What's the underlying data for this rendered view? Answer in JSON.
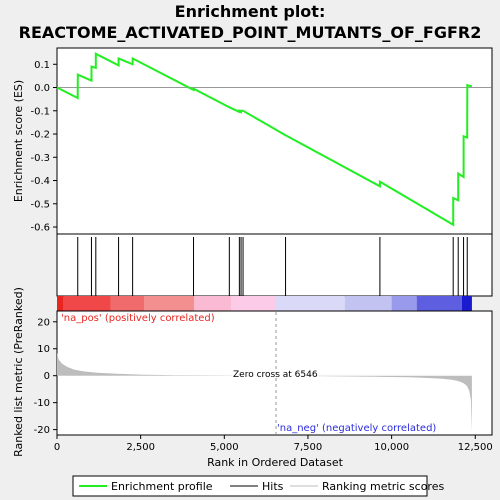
{
  "chart_data": {
    "type": "line",
    "title_line1": "Enrichment plot:",
    "title_line2": "REACTOME_ACTIVATED_POINT_MUTANTS_OF_FGFR2",
    "top_panel": {
      "ylabel": "Enrichment score (ES)",
      "ylim": [
        -0.63,
        0.17
      ],
      "yticks": [
        "0.1",
        "0.0",
        "-0.1",
        "-0.2",
        "-0.3",
        "-0.4",
        "-0.5",
        "-0.6"
      ],
      "ytick_values": [
        0.1,
        0.0,
        -0.1,
        -0.2,
        -0.3,
        -0.4,
        -0.5,
        -0.6
      ],
      "series": [
        {
          "name": "Enrichment profile",
          "x": [
            0,
            620,
            621,
            1030,
            1031,
            1160,
            1161,
            1840,
            1841,
            2260,
            2261,
            4080,
            4081,
            5150,
            5151,
            5450,
            5451,
            5500,
            5501,
            5560,
            5561,
            6830,
            6831,
            9650,
            9651,
            11840,
            11841,
            11990,
            11991,
            12150,
            12151,
            12260,
            12261,
            12400
          ],
          "y": [
            0.0,
            -0.045,
            0.055,
            0.03,
            0.09,
            0.085,
            0.145,
            0.095,
            0.125,
            0.1,
            0.125,
            -0.01,
            -0.005,
            -0.085,
            -0.085,
            -0.105,
            -0.1,
            -0.105,
            -0.1,
            -0.1,
            -0.1,
            -0.205,
            -0.205,
            -0.425,
            -0.405,
            -0.59,
            -0.475,
            -0.485,
            -0.37,
            -0.385,
            -0.21,
            -0.215,
            0.01,
            0.005
          ]
        }
      ]
    },
    "hits": [
      620,
      1030,
      1160,
      1840,
      2260,
      4080,
      5150,
      5450,
      5500,
      5560,
      6830,
      9650,
      11840,
      11990,
      12150,
      12260
    ],
    "bottom_panel": {
      "ylabel": "Ranked list metric (PreRanked)",
      "xlabel": "Rank in Ordered Dataset",
      "ylim": [
        -22,
        24
      ],
      "yticks": [
        "20",
        "10",
        "0",
        "-10",
        "-20"
      ],
      "ytick_values": [
        20,
        10,
        0,
        -10,
        -20
      ],
      "xticks": [
        "0",
        "2,500",
        "5,000",
        "7,500",
        "10,000",
        "12,500"
      ],
      "xtick_values": [
        0,
        2500,
        5000,
        7500,
        10000,
        12500
      ],
      "xlim": [
        0,
        13000
      ],
      "n_genes": 12400,
      "zero_cross": 6546,
      "zero_cross_label": "Zero cross at 6546",
      "pos_label": "'na_pos' (positively correlated)",
      "neg_label": "'na_neg' (negatively correlated)",
      "metric_profile": {
        "x": [
          0,
          50,
          150,
          300,
          500,
          800,
          1200,
          1800,
          2500,
          3500,
          4500,
          5500,
          6546,
          7500,
          8500,
          9500,
          10500,
          11000,
          11500,
          11800,
          12000,
          12150,
          12250,
          12320,
          12370,
          12400
        ],
        "y": [
          8.5,
          6.0,
          4.5,
          3.3,
          2.3,
          1.6,
          1.1,
          0.7,
          0.4,
          0.2,
          0.1,
          0.05,
          0.0,
          -0.1,
          -0.25,
          -0.4,
          -0.6,
          -0.8,
          -1.1,
          -1.5,
          -2.0,
          -2.8,
          -3.8,
          -5.5,
          -9.0,
          -21.0
        ]
      }
    },
    "colorbar_segments": [
      {
        "from": 0,
        "to": 200,
        "color": "#e8261f"
      },
      {
        "from": 200,
        "to": 1600,
        "color": "#f04848"
      },
      {
        "from": 1600,
        "to": 2600,
        "color": "#f06c6c"
      },
      {
        "from": 2600,
        "to": 4100,
        "color": "#f48f8f"
      },
      {
        "from": 4100,
        "to": 5200,
        "color": "#fbbad3"
      },
      {
        "from": 5200,
        "to": 6546,
        "color": "#fccbe8"
      },
      {
        "from": 6546,
        "to": 8600,
        "color": "#dadaf8"
      },
      {
        "from": 8600,
        "to": 10000,
        "color": "#c3c3f2"
      },
      {
        "from": 10000,
        "to": 10750,
        "color": "#9a9aec"
      },
      {
        "from": 10750,
        "to": 12100,
        "color": "#5e5ee0"
      },
      {
        "from": 12100,
        "to": 12400,
        "color": "#1a1ad0"
      }
    ],
    "legend": {
      "items": [
        {
          "label": "Enrichment profile",
          "color": "#22ee22"
        },
        {
          "label": "Hits",
          "color": "#000000"
        },
        {
          "label": "Ranking metric scores",
          "color": "#bdbdbd"
        }
      ]
    },
    "colors": {
      "es_line": "#22ee22",
      "metric_fill": "#bdbdbd",
      "hit": "#000000",
      "pos_text": "#e8261f",
      "neg_text": "#2b2be0"
    }
  }
}
